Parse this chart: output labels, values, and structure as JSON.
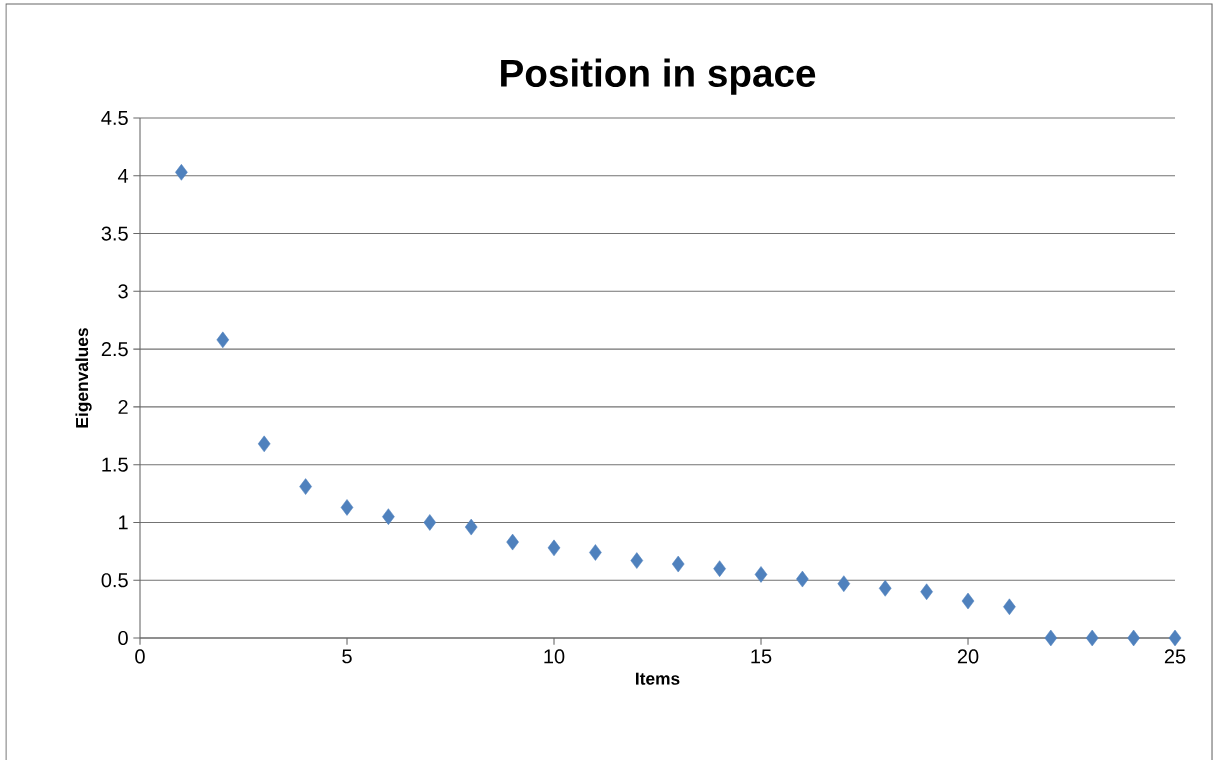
{
  "chart_data": {
    "type": "scatter",
    "title": "Position in space",
    "xlabel": "Items",
    "ylabel": "Eigenvalues",
    "x": [
      1,
      2,
      3,
      4,
      5,
      6,
      7,
      8,
      9,
      10,
      11,
      12,
      13,
      14,
      15,
      16,
      17,
      18,
      19,
      20,
      21,
      22,
      23,
      24,
      25
    ],
    "series": [
      {
        "color": "#4f81bd",
        "values": [
          4.03,
          2.58,
          1.68,
          1.31,
          1.13,
          1.05,
          1.0,
          0.96,
          0.83,
          0.78,
          0.74,
          0.67,
          0.64,
          0.6,
          0.55,
          0.51,
          0.47,
          0.43,
          0.4,
          0.32,
          0.27,
          0,
          0,
          0,
          0
        ]
      }
    ],
    "xlim": [
      0,
      25
    ],
    "ylim": [
      0,
      4.5
    ],
    "xticks": [
      0,
      5,
      10,
      15,
      20,
      25
    ],
    "yticks": [
      0,
      0.5,
      1,
      1.5,
      2,
      2.5,
      3,
      3.5,
      4,
      4.5
    ],
    "grid": "y",
    "marker": "diamond"
  }
}
